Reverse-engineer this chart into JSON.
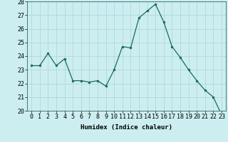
{
  "x": [
    0,
    1,
    2,
    3,
    4,
    5,
    6,
    7,
    8,
    9,
    10,
    11,
    12,
    13,
    14,
    15,
    16,
    17,
    18,
    19,
    20,
    21,
    22,
    23
  ],
  "y": [
    23.3,
    23.3,
    24.2,
    23.3,
    23.8,
    22.2,
    22.2,
    22.1,
    22.2,
    21.8,
    23.0,
    24.7,
    24.6,
    26.8,
    27.3,
    27.8,
    26.5,
    24.7,
    23.9,
    23.0,
    22.2,
    21.5,
    21.0,
    19.7
  ],
  "xlabel": "Humidex (Indice chaleur)",
  "ylim": [
    20,
    28
  ],
  "xlim": [
    -0.5,
    23.5
  ],
  "yticks": [
    20,
    21,
    22,
    23,
    24,
    25,
    26,
    27,
    28
  ],
  "xticks": [
    0,
    1,
    2,
    3,
    4,
    5,
    6,
    7,
    8,
    9,
    10,
    11,
    12,
    13,
    14,
    15,
    16,
    17,
    18,
    19,
    20,
    21,
    22,
    23
  ],
  "line_color": "#1a6b5a",
  "marker_color": "#1a6b5a",
  "bg_color": "#cceef0",
  "grid_color": "#aad4d8",
  "axis_fontsize": 6.5,
  "tick_fontsize": 6.0
}
